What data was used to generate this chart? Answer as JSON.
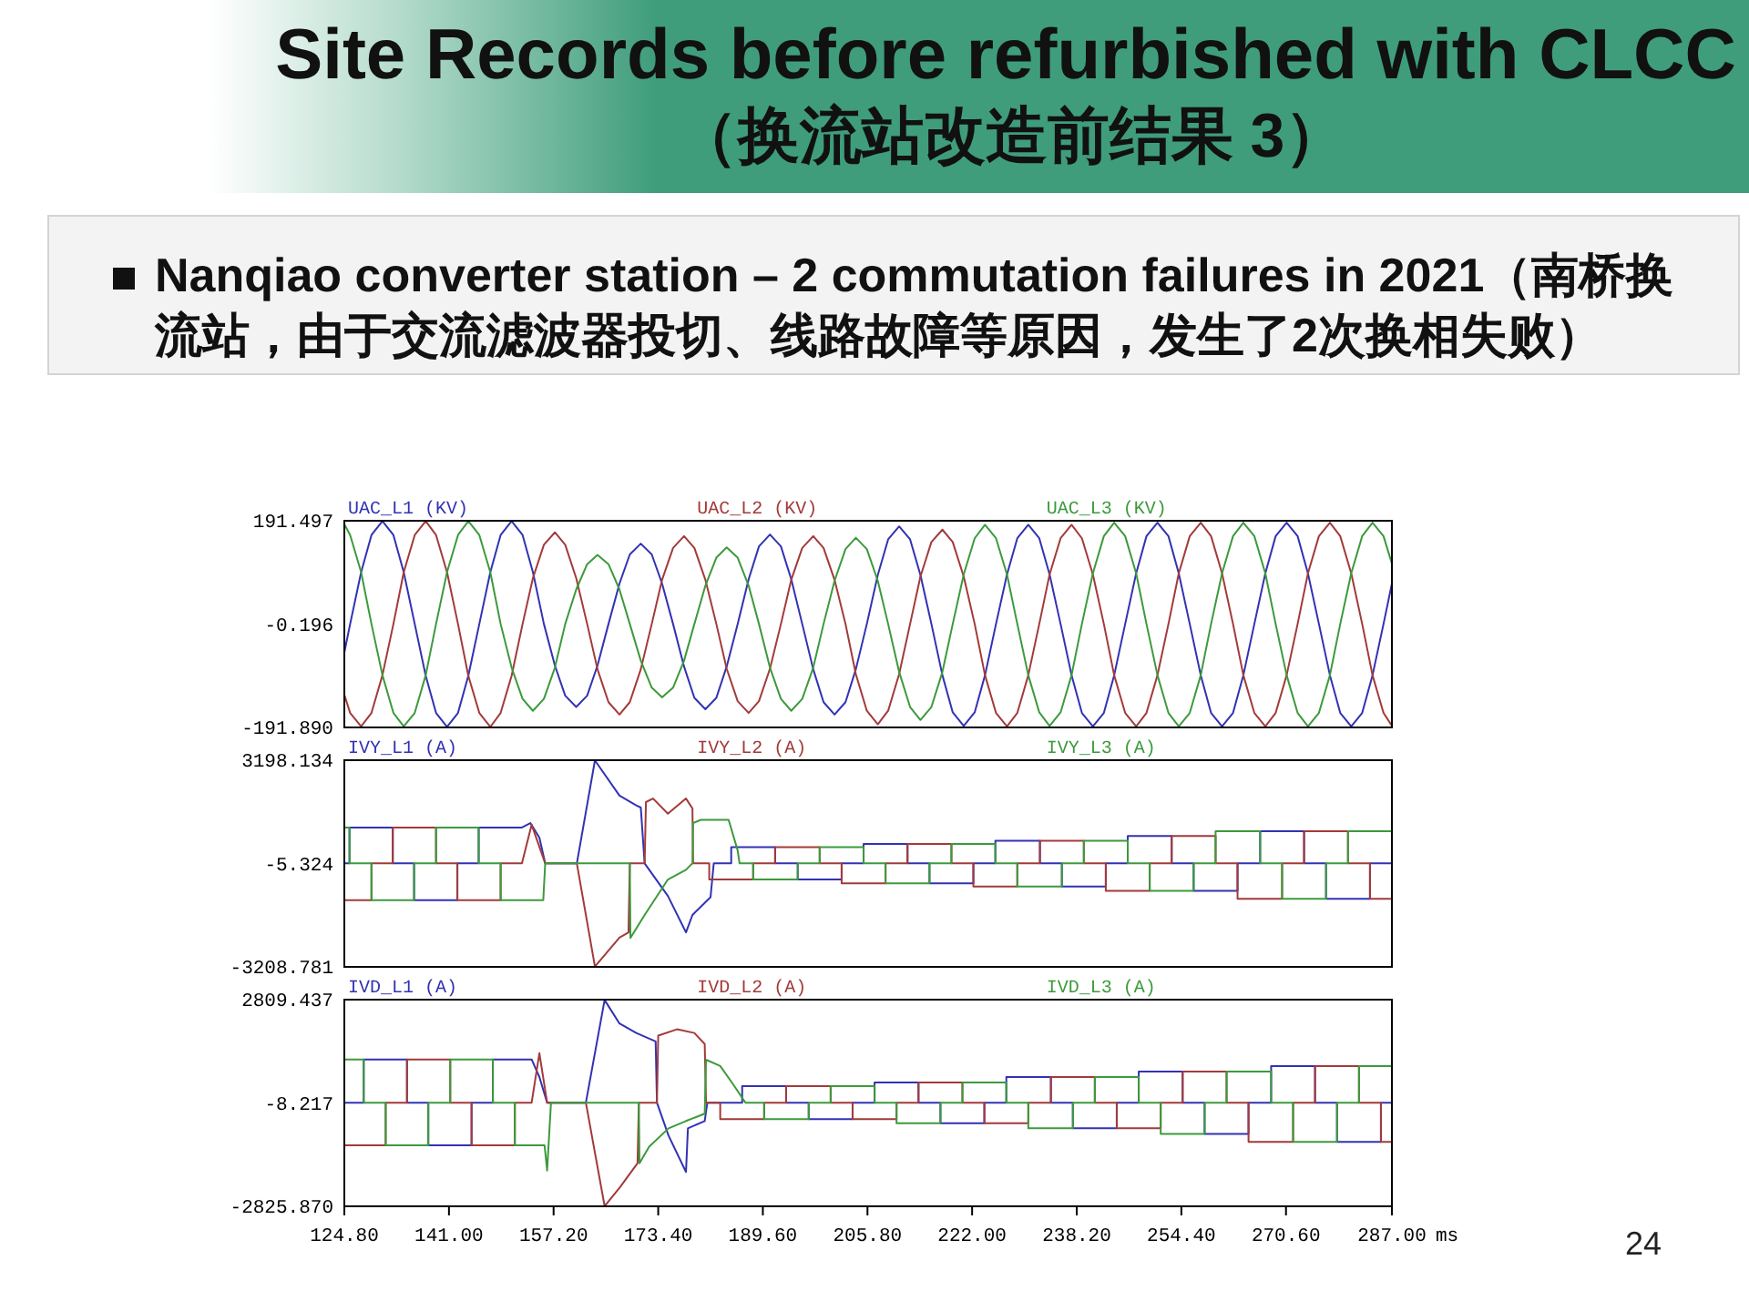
{
  "chart_data": [
    {
      "type": "line",
      "title": "Site Records before refurbished with CLCC",
      "subtitle": "（换流站改造前结果 3）",
      "annotations": [
        "Nanqiao converter station – 2 commutation failures in 2021（南桥换流站，由于交流滤波器投切、线路故障等原因，发生了2次换相失败）",
        "24"
      ],
      "xlim": [
        124.8,
        287
      ],
      "ylim": [
        -191.89,
        191.497
      ],
      "yticks": [
        191.497,
        -0.196,
        {
          "value": -191.89,
          "label": "-191.890"
        }
      ],
      "tick_labels": "y",
      "legend": "top",
      "x": [
        124.8,
        125.7,
        127.4,
        129.0,
        130.7,
        132.4,
        134.0,
        135.7,
        137.4,
        139.0,
        140.7,
        142.4,
        144.0,
        145.7,
        147.4,
        149.0,
        150.7,
        152.4,
        154.0,
        155.7,
        157.4,
        159.0,
        160.7,
        162.4,
        164.0,
        165.7,
        167.4,
        169.0,
        170.7,
        172.4,
        174.0,
        175.7,
        177.4,
        179.0,
        180.7,
        182.4,
        184.0,
        185.7,
        187.4,
        189.0,
        190.7,
        192.4,
        194.0,
        195.7,
        197.4,
        199.0,
        200.7,
        202.4,
        204.0,
        205.7,
        207.4,
        209.0,
        210.7,
        212.4,
        214.0,
        215.7,
        217.4,
        219.0,
        220.7,
        222.4,
        224.0,
        225.7,
        227.4,
        229.0,
        230.7,
        232.4,
        234.0,
        235.7,
        237.4,
        239.0,
        240.7,
        242.4,
        244.0,
        245.7,
        247.4,
        249.0,
        250.7,
        252.4,
        254.0,
        255.7,
        257.4,
        259.0,
        260.7,
        262.4,
        264.0,
        265.7,
        267.4,
        269.0,
        270.7,
        272.4,
        274.0,
        275.7,
        277.4,
        279.0,
        280.7,
        282.4,
        284.0,
        285.7,
        287.0
      ],
      "series": [
        {
          "name": "UAC_L1 (KV)",
          "color": "#3232b4",
          "values": [
            -53,
            0,
            96,
            165,
            191,
            165,
            96,
            0,
            -96,
            -165,
            -191,
            -165,
            -96,
            0,
            96,
            165,
            191,
            165,
            96,
            0,
            -77,
            -133,
            -154,
            -133,
            -77,
            0,
            75,
            129,
            149,
            129,
            75,
            0,
            -79,
            -137,
            -158,
            -137,
            -79,
            0,
            83,
            144,
            166,
            144,
            83,
            0,
            -84,
            -145,
            -168,
            -145,
            -84,
            0,
            91,
            157,
            181,
            157,
            91,
            0,
            -95,
            -164,
            -189,
            -164,
            -95,
            0,
            92,
            159,
            184,
            159,
            92,
            0,
            -95,
            -165,
            -190,
            -165,
            -95,
            0,
            94,
            163,
            188,
            163,
            94,
            0,
            -95,
            -165,
            -190,
            -165,
            -95,
            0,
            94,
            163,
            188,
            163,
            94,
            0,
            -95,
            -165,
            -190,
            -165,
            -95,
            0,
            75
          ]
        },
        {
          "name": "UAC_L2 (KV)",
          "color": "#a33a3a",
          "values": [
            -131,
            -165,
            -190,
            -165,
            -95,
            0,
            96,
            165,
            191,
            165,
            96,
            0,
            -96,
            -165,
            -191,
            -165,
            -96,
            0,
            85,
            147,
            170,
            147,
            85,
            0,
            -84,
            -145,
            -168,
            -145,
            -84,
            0,
            82,
            141,
            163,
            141,
            82,
            0,
            -83,
            -143,
            -165,
            -143,
            -83,
            0,
            82,
            141,
            163,
            141,
            82,
            0,
            -93,
            -161,
            -186,
            -161,
            -93,
            0,
            88,
            152,
            175,
            152,
            88,
            0,
            -95,
            -165,
            -190,
            -165,
            -95,
            0,
            92,
            159,
            184,
            159,
            92,
            0,
            -95,
            -165,
            -190,
            -165,
            -95,
            0,
            94,
            163,
            188,
            163,
            94,
            0,
            -95,
            -165,
            -190,
            -165,
            -95,
            0,
            94,
            163,
            188,
            163,
            94,
            0,
            -95,
            -165,
            -189
          ]
        },
        {
          "name": "UAC_L3 (KV)",
          "color": "#3c9a3c",
          "values": [
            185,
            165,
            96,
            0,
            -95,
            -165,
            -190,
            -165,
            -95,
            0,
            96,
            165,
            191,
            165,
            96,
            0,
            -81,
            -139,
            -161,
            -139,
            -81,
            0,
            64,
            111,
            128,
            111,
            64,
            0,
            -68,
            -118,
            -136,
            -118,
            -68,
            0,
            71,
            123,
            142,
            123,
            71,
            0,
            -81,
            -139,
            -161,
            -139,
            -81,
            0,
            80,
            139,
            160,
            139,
            80,
            0,
            -89,
            -154,
            -178,
            -154,
            -89,
            0,
            92,
            159,
            184,
            159,
            92,
            0,
            -95,
            -164,
            -189,
            -164,
            -95,
            0,
            94,
            163,
            188,
            163,
            94,
            0,
            -95,
            -165,
            -190,
            -165,
            -95,
            0,
            94,
            163,
            188,
            163,
            94,
            0,
            -95,
            -165,
            -190,
            -165,
            -95,
            0,
            94,
            163,
            188,
            163,
            112
          ]
        }
      ]
    },
    {
      "type": "line",
      "xlim": [
        124.8,
        287
      ],
      "ylim": [
        -3208.781,
        3198.134
      ],
      "yticks": [
        3198.134,
        -5.324,
        -3208.781
      ],
      "tick_labels": "y",
      "legend": "top",
      "series": [
        {
          "name": "IVY_L1 (A)",
          "color": "#3232b4",
          "x": [
            124.8,
            125.6,
            125.6,
            132.3,
            132.3,
            135.6,
            135.6,
            142.3,
            142.3,
            145.6,
            145.6,
            152.3,
            153.6,
            155.0,
            155.9,
            160.8,
            163.6,
            167.4,
            170.0,
            170.7,
            171.3,
            174.9,
            177.7,
            178.7,
            181.5,
            182.0,
            184.7,
            184.7,
            191.5,
            191.5,
            195.0,
            195.0,
            201.8,
            201.8,
            205.2,
            205.2,
            212.0,
            212.0,
            215.4,
            215.4,
            222.2,
            222.2,
            225.6,
            225.6,
            232.5,
            232.5,
            235.9,
            235.9,
            242.7,
            242.7,
            246.1,
            246.1,
            252.9,
            252.9,
            256.3,
            256.3,
            263.1,
            263.1,
            266.6,
            266.6,
            273.4,
            273.4,
            276.8,
            276.8,
            283.6,
            283.6,
            287.0
          ],
          "values": [
            0,
            0,
            1110,
            1110,
            0,
            0,
            -1140,
            -1140,
            0,
            0,
            1110,
            1110,
            1250,
            800,
            0,
            0,
            3190,
            2100,
            1800,
            1730,
            0,
            -1010,
            -2140,
            -1600,
            -1050,
            0,
            0,
            500,
            500,
            0,
            0,
            -500,
            -500,
            0,
            0,
            600,
            600,
            0,
            0,
            -620,
            -620,
            0,
            0,
            700,
            700,
            0,
            0,
            -720,
            -720,
            0,
            0,
            850,
            850,
            0,
            0,
            -850,
            -850,
            0,
            0,
            1000,
            1000,
            0,
            0,
            -1100,
            -1100,
            0,
            0
          ]
        },
        {
          "name": "IVY_L2 (A)",
          "color": "#a33a3a",
          "x": [
            124.8,
            129.0,
            129.0,
            132.3,
            132.3,
            139.0,
            139.0,
            142.3,
            142.3,
            149.0,
            149.0,
            152.3,
            153.8,
            155.9,
            160.8,
            163.6,
            167.4,
            168.8,
            169.0,
            171.3,
            171.5,
            172.6,
            174.9,
            177.7,
            178.7,
            178.8,
            181.3,
            181.3,
            188.1,
            188.1,
            191.5,
            191.5,
            198.4,
            198.4,
            201.8,
            201.8,
            208.6,
            208.6,
            212.0,
            212.0,
            218.8,
            218.8,
            222.2,
            222.2,
            229.0,
            229.0,
            232.5,
            232.5,
            239.3,
            239.3,
            242.7,
            242.7,
            249.5,
            249.5,
            252.9,
            252.9,
            259.7,
            259.7,
            263.1,
            263.1,
            270.0,
            270.0,
            273.4,
            273.4,
            280.2,
            280.2,
            283.6,
            283.6,
            287.0
          ],
          "values": [
            -1140,
            -1140,
            0,
            0,
            1110,
            1110,
            0,
            0,
            -1140,
            -1140,
            0,
            0,
            1200,
            0,
            0,
            -3200,
            -2300,
            -2140,
            0,
            0,
            1900,
            2010,
            1540,
            2010,
            1700,
            0,
            0,
            -500,
            -500,
            0,
            0,
            500,
            500,
            0,
            0,
            -620,
            -620,
            0,
            0,
            600,
            600,
            0,
            0,
            -720,
            -720,
            0,
            0,
            700,
            700,
            0,
            0,
            -850,
            -850,
            0,
            0,
            850,
            850,
            0,
            0,
            -1100,
            -1100,
            0,
            0,
            1000,
            1000,
            0,
            0,
            -1100,
            -1100
          ]
        },
        {
          "name": "IVY_L3 (A)",
          "color": "#3c9a3c",
          "x": [
            124.8,
            125.6,
            125.6,
            129.0,
            129.0,
            135.6,
            135.6,
            139.0,
            139.0,
            145.6,
            145.6,
            149.0,
            149.0,
            155.6,
            155.9,
            169.0,
            169.1,
            171.3,
            174.9,
            177.7,
            178.7,
            178.8,
            180.0,
            184.3,
            185.7,
            186.0,
            188.1,
            188.1,
            195.0,
            195.0,
            198.4,
            198.4,
            205.2,
            205.2,
            208.6,
            208.6,
            215.4,
            215.4,
            218.8,
            218.8,
            225.6,
            225.6,
            229.0,
            229.0,
            235.9,
            235.9,
            239.3,
            239.3,
            246.1,
            246.1,
            249.5,
            249.5,
            256.3,
            256.3,
            259.7,
            259.7,
            266.6,
            266.6,
            270.0,
            270.0,
            276.8,
            276.8,
            280.2,
            280.2,
            287.0
          ],
          "values": [
            1110,
            1110,
            0,
            0,
            -1140,
            -1140,
            0,
            0,
            1110,
            1110,
            0,
            0,
            -1140,
            -1140,
            0,
            0,
            -2310,
            -1600,
            -500,
            -200,
            0,
            1250,
            1350,
            1350,
            400,
            0,
            0,
            -500,
            -500,
            0,
            0,
            500,
            500,
            0,
            0,
            -620,
            -620,
            0,
            0,
            600,
            600,
            0,
            0,
            -720,
            -720,
            0,
            0,
            700,
            700,
            0,
            0,
            -850,
            -850,
            0,
            0,
            1000,
            1000,
            0,
            0,
            -1100,
            -1100,
            0,
            0,
            1000,
            1000
          ]
        }
      ]
    },
    {
      "type": "line",
      "xlim": [
        124.8,
        287
      ],
      "ylim": [
        -2825.87,
        2809.437
      ],
      "yticks": [
        2809.437,
        -8.217,
        {
          "value": -2825.87,
          "label": "-2825.870"
        }
      ],
      "xticks": [
        {
          "value": 124.8,
          "label": "124.80"
        },
        {
          "value": 141,
          "label": "141.00"
        },
        {
          "value": 157.2,
          "label": "157.20"
        },
        {
          "value": 173.4,
          "label": "173.40"
        },
        {
          "value": 189.6,
          "label": "189.60"
        },
        {
          "value": 205.8,
          "label": "205.80"
        },
        {
          "value": 222,
          "label": "222.00"
        },
        {
          "value": 238.2,
          "label": "238.20"
        },
        {
          "value": 254.4,
          "label": "254.40"
        },
        {
          "value": 270.6,
          "label": "270.60"
        },
        {
          "value": 287,
          "label": "287.00"
        }
      ],
      "xlabel": "ms",
      "legend": "top",
      "series": [
        {
          "name": "IVD_L1 (A)",
          "color": "#3232b4",
          "x": [
            124.8,
            127.8,
            127.8,
            134.5,
            134.5,
            137.8,
            137.8,
            144.5,
            144.5,
            147.8,
            147.8,
            153.8,
            155.0,
            156.2,
            162.2,
            165.1,
            167.4,
            170.0,
            173.0,
            173.2,
            175.0,
            177.7,
            178.0,
            180.6,
            181.0,
            186.4,
            186.4,
            193.2,
            193.2,
            196.7,
            196.7,
            203.5,
            203.5,
            206.9,
            206.9,
            213.7,
            213.7,
            217.1,
            217.1,
            223.9,
            223.9,
            227.3,
            227.3,
            234.2,
            234.2,
            237.6,
            237.6,
            244.4,
            244.4,
            247.8,
            247.8,
            254.6,
            254.6,
            258.0,
            258.0,
            264.8,
            264.8,
            268.3,
            268.3,
            275.1,
            275.1,
            278.5,
            278.5,
            285.3,
            285.3,
            287.0
          ],
          "values": [
            0,
            0,
            1180,
            1180,
            0,
            0,
            -1160,
            -1160,
            0,
            0,
            1180,
            1180,
            700,
            0,
            0,
            2800,
            2160,
            1900,
            1670,
            0,
            -900,
            -1890,
            -700,
            -500,
            0,
            0,
            450,
            450,
            0,
            0,
            -450,
            -450,
            0,
            0,
            550,
            550,
            0,
            0,
            -560,
            -560,
            0,
            0,
            700,
            700,
            0,
            0,
            -700,
            -700,
            0,
            0,
            850,
            850,
            0,
            0,
            -850,
            -850,
            0,
            0,
            1000,
            1000,
            0,
            0,
            -1070,
            -1070,
            0,
            0
          ]
        },
        {
          "name": "IVD_L2 (A)",
          "color": "#a33a3a",
          "x": [
            124.8,
            131.2,
            131.2,
            134.5,
            134.5,
            141.2,
            141.2,
            144.5,
            144.5,
            151.2,
            151.2,
            153.8,
            155.0,
            156.2,
            162.2,
            165.1,
            167.5,
            170.2,
            170.4,
            173.2,
            173.4,
            176.3,
            179.0,
            180.6,
            180.8,
            183.0,
            183.0,
            189.8,
            189.8,
            193.2,
            193.2,
            200.1,
            200.1,
            203.5,
            203.5,
            210.3,
            210.3,
            213.7,
            213.7,
            220.5,
            220.5,
            223.9,
            223.9,
            230.7,
            230.7,
            234.2,
            234.2,
            241.0,
            241.0,
            244.4,
            244.4,
            251.2,
            251.2,
            254.6,
            254.6,
            261.4,
            261.4,
            264.8,
            264.8,
            271.7,
            271.7,
            275.1,
            275.1,
            281.9,
            281.9,
            285.3,
            285.3,
            287.0
          ],
          "values": [
            -1160,
            -1160,
            0,
            0,
            1180,
            1180,
            0,
            0,
            -1160,
            -1160,
            0,
            0,
            1350,
            0,
            0,
            -2820,
            -2300,
            -1650,
            0,
            0,
            1830,
            2000,
            1900,
            1600,
            0,
            0,
            -450,
            -450,
            0,
            0,
            450,
            450,
            0,
            0,
            -450,
            -450,
            0,
            0,
            550,
            550,
            0,
            0,
            -560,
            -560,
            0,
            0,
            700,
            700,
            0,
            0,
            -700,
            -700,
            0,
            0,
            850,
            850,
            0,
            0,
            -1070,
            -1070,
            0,
            0,
            1000,
            1000,
            0,
            0,
            -1070,
            -1070
          ]
        },
        {
          "name": "IVD_L3 (A)",
          "color": "#3c9a3c",
          "x": [
            124.8,
            127.8,
            127.8,
            131.2,
            131.2,
            137.8,
            137.8,
            141.2,
            141.2,
            147.8,
            147.8,
            151.2,
            151.2,
            155.8,
            156.2,
            156.8,
            170.4,
            170.5,
            172.0,
            175.0,
            177.7,
            180.6,
            180.8,
            183.0,
            185.0,
            186.9,
            189.8,
            189.8,
            196.7,
            196.7,
            200.1,
            200.1,
            206.9,
            206.9,
            210.3,
            210.3,
            217.1,
            217.1,
            220.5,
            220.5,
            227.3,
            227.3,
            230.7,
            230.7,
            237.6,
            237.6,
            241.0,
            241.0,
            247.8,
            247.8,
            251.2,
            251.2,
            258.0,
            258.0,
            261.4,
            261.4,
            268.3,
            268.3,
            271.7,
            271.7,
            278.5,
            278.5,
            281.9,
            281.9,
            287.0
          ],
          "values": [
            1180,
            1180,
            0,
            0,
            -1160,
            -1160,
            0,
            0,
            1180,
            1180,
            0,
            0,
            -1160,
            -1160,
            -1850,
            0,
            0,
            -1650,
            -1200,
            -700,
            -500,
            -300,
            1170,
            1000,
            500,
            0,
            0,
            -450,
            -450,
            0,
            0,
            450,
            450,
            0,
            0,
            -560,
            -560,
            0,
            0,
            550,
            550,
            0,
            0,
            -700,
            -700,
            0,
            0,
            700,
            700,
            0,
            0,
            -850,
            -850,
            0,
            0,
            850,
            850,
            0,
            0,
            -1070,
            -1070,
            0,
            0,
            1000,
            1000
          ]
        }
      ]
    }
  ]
}
